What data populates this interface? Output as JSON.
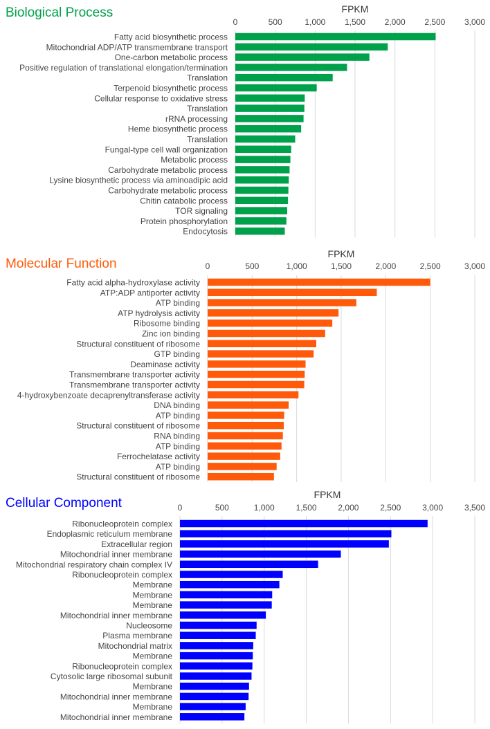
{
  "chart_data": [
    {
      "type": "bar",
      "orientation": "horizontal",
      "title": "Biological Process",
      "xlabel": "FPKM",
      "color": "#00a14b",
      "xlim": [
        0,
        3000
      ],
      "ticks": [
        0,
        500,
        1000,
        1500,
        2000,
        2500,
        3000
      ],
      "tick_labels": [
        "0",
        "500",
        "1,000",
        "1,500",
        "2,000",
        "2,500",
        "3,000"
      ],
      "categories": [
        "Fatty acid biosynthetic process",
        "Mitochondrial ADP/ATP transmembrane transport",
        "One-carbon metabolic process",
        "Positive regulation of translational elongation/termination",
        "Translation",
        "Terpenoid biosynthetic process",
        "Cellular response to oxidative stress",
        "Translation",
        "rRNA processing",
        "Heme biosynthetic process",
        "Translation",
        "Fungal-type cell wall organization",
        "Metabolic process",
        "Carbohydrate metabolic process",
        "Lysine biosynthetic process via aminoadipic acid",
        "Carbohydrate metabolic process",
        "Chitin catabolic process",
        "TOR signaling",
        "Protein phosphorylation",
        "Endocytosis"
      ],
      "values": [
        2510,
        1910,
        1680,
        1400,
        1220,
        1020,
        870,
        865,
        855,
        825,
        750,
        700,
        690,
        680,
        670,
        665,
        660,
        650,
        640,
        620
      ]
    },
    {
      "type": "bar",
      "orientation": "horizontal",
      "title": "Molecular Function",
      "xlabel": "FPKM",
      "color": "#ff5a0a",
      "xlim": [
        0,
        3000
      ],
      "ticks": [
        0,
        500,
        1000,
        1500,
        2000,
        2500,
        3000
      ],
      "tick_labels": [
        "0",
        "500",
        "1,000",
        "1,500",
        "2,000",
        "2,500",
        "3,000"
      ],
      "categories": [
        "Fatty acid alpha-hydroxylase activity",
        "ATP:ADP antiporter activity",
        "ATP binding",
        "ATP hydrolysis activity",
        "Ribosome binding",
        "Zinc ion binding",
        "Structural constituent of ribosome",
        "GTP binding",
        "Deaminase activity",
        "Transmembrane transporter activity",
        "Transmembrane transporter activity",
        "4-hydroxybenzoate decaprenyltransferase activity",
        "DNA binding",
        "ATP binding",
        "Structural constituent of ribosome",
        "RNA binding",
        "ATP binding",
        "Ferrochelatase activity",
        "ATP binding",
        "Structural constituent of ribosome"
      ],
      "values": [
        2500,
        1900,
        1670,
        1470,
        1400,
        1320,
        1220,
        1190,
        1100,
        1090,
        1085,
        1020,
        910,
        860,
        855,
        845,
        830,
        815,
        775,
        745
      ]
    },
    {
      "type": "bar",
      "orientation": "horizontal",
      "title": "Cellular Component",
      "xlabel": "FPKM",
      "color": "#0000ff",
      "xlim": [
        0,
        3500
      ],
      "ticks": [
        0,
        500,
        1000,
        1500,
        2000,
        2500,
        3000,
        3500
      ],
      "tick_labels": [
        "0",
        "500",
        "1,000",
        "1,500",
        "2,000",
        "2,500",
        "3,000",
        "3,500"
      ],
      "categories": [
        "Ribonucleoprotein complex",
        "Endoplasmic reticulum membrane",
        "Extracellular region",
        "Mitochondrial inner membrane",
        "Mitochondrial respiratory chain complex IV",
        "Ribonucleoprotein complex",
        "Membrane",
        "Membrane",
        "Membrane",
        "Mitochondrial inner membrane",
        "Nucleosome",
        "Plasma membrane",
        "Mitochondrial matrix",
        "Membrane",
        "Ribonucleoprotein complex",
        "Cytosolic large ribosomal subunit",
        "Membrane",
        "Mitochondrial inner membrane",
        "Membrane",
        "Mitochondrial inner membrane"
      ],
      "values": [
        2940,
        2510,
        2480,
        1910,
        1640,
        1220,
        1180,
        1095,
        1090,
        1020,
        910,
        900,
        870,
        865,
        860,
        850,
        820,
        815,
        780,
        765
      ]
    }
  ]
}
